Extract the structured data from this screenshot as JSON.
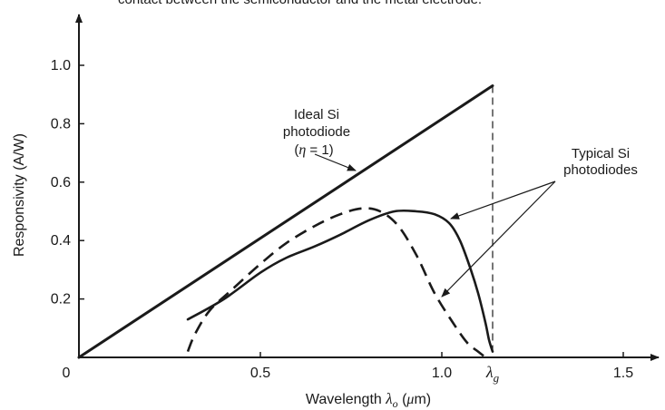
{
  "chart_data": {
    "type": "line",
    "header_fragment": "contact between the semiconductor and the metal electrode.",
    "xlabel": "Wavelength",
    "xlabel_symbol": "λ",
    "xlabel_subscript": "o",
    "xlabel_unit_open": "(",
    "xlabel_unit_mu": "μ",
    "xlabel_unit_rest": "m)",
    "ylabel": "Responsivity (A/W)",
    "xlim": [
      0,
      1.6
    ],
    "ylim": [
      0,
      1.15
    ],
    "xticks": [
      {
        "value": 0,
        "label": "0"
      },
      {
        "value": 0.5,
        "label": "0.5"
      },
      {
        "value": 1.0,
        "label": "1.0"
      },
      {
        "value": 1.5,
        "label": "1.5"
      }
    ],
    "yticks": [
      {
        "value": 0.2,
        "label": "0.2"
      },
      {
        "value": 0.4,
        "label": "0.4"
      },
      {
        "value": 0.6,
        "label": "0.6"
      },
      {
        "value": 0.8,
        "label": "0.8"
      },
      {
        "value": 1.0,
        "label": "1.0"
      }
    ],
    "lambda_g": {
      "value": 1.14,
      "label": "λ",
      "sub": "g"
    },
    "series": [
      {
        "id": "ideal",
        "style": "solid",
        "x": [
          0.0,
          1.14
        ],
        "y": [
          0.0,
          0.93
        ]
      },
      {
        "id": "typical-solid",
        "style": "solid",
        "x": [
          0.3,
          0.4,
          0.5,
          0.57,
          0.65,
          0.72,
          0.8,
          0.87,
          0.93,
          0.98,
          1.02,
          1.05,
          1.08,
          1.1,
          1.12,
          1.13,
          1.14
        ],
        "y": [
          0.13,
          0.2,
          0.29,
          0.34,
          0.38,
          0.42,
          0.47,
          0.5,
          0.5,
          0.49,
          0.46,
          0.4,
          0.3,
          0.22,
          0.12,
          0.06,
          0.02
        ]
      },
      {
        "id": "typical-dashed",
        "style": "dashed",
        "x": [
          0.3,
          0.32,
          0.36,
          0.42,
          0.5,
          0.57,
          0.65,
          0.72,
          0.78,
          0.83,
          0.88,
          0.93,
          0.98,
          1.03,
          1.07,
          1.1,
          1.12
        ],
        "y": [
          0.02,
          0.08,
          0.16,
          0.23,
          0.32,
          0.39,
          0.45,
          0.49,
          0.51,
          0.5,
          0.45,
          0.35,
          0.22,
          0.12,
          0.05,
          0.02,
          0.0
        ]
      }
    ],
    "annotations": {
      "ideal": {
        "lines": [
          "Ideal Si",
          "photodiode"
        ],
        "eta_left": "(",
        "eta_symbol": "η",
        "eta_right": " = 1)"
      },
      "typical": {
        "lines": [
          "Typical Si",
          "photodiodes"
        ]
      }
    }
  }
}
